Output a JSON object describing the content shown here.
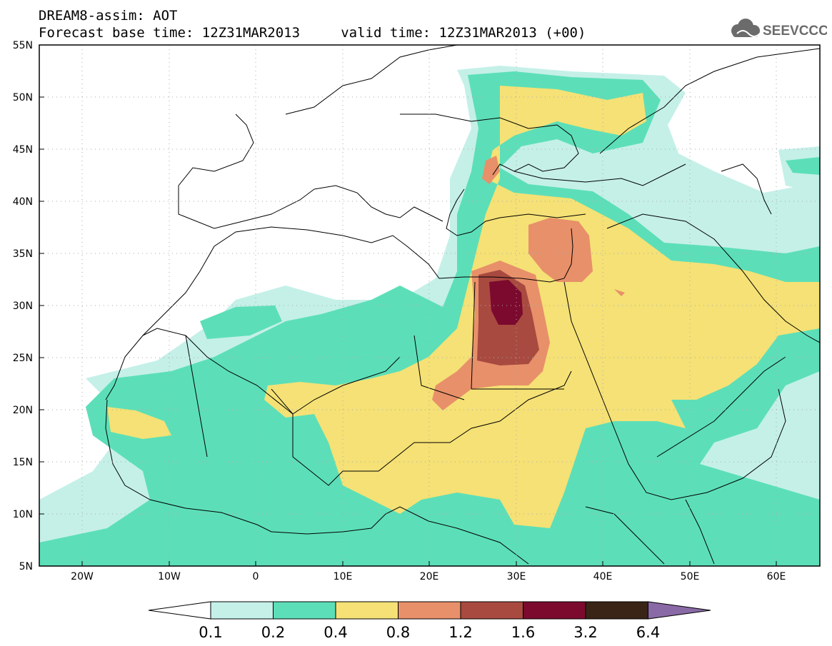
{
  "header": {
    "line1": "DREAM8-assim: AOT",
    "line2": "Forecast base time: 12Z31MAR2013     valid time: 12Z31MAR2013 (+00)",
    "logo_text": "SEEVCCC"
  },
  "map": {
    "lon_range": [
      -25,
      65
    ],
    "lat_range": [
      5,
      55
    ],
    "lon_ticks": [
      "20W",
      "10W",
      "0",
      "10E",
      "20E",
      "30E",
      "40E",
      "50E",
      "60E"
    ],
    "lat_ticks": [
      "55N",
      "50N",
      "45N",
      "40N",
      "35N",
      "30N",
      "25N",
      "20N",
      "15N",
      "10N",
      "5N"
    ],
    "grid": "dotted"
  },
  "colorbar": {
    "labels": [
      "0.1",
      "0.2",
      "0.4",
      "0.8",
      "1.2",
      "1.6",
      "3.2",
      "6.4"
    ],
    "colors": [
      "#c4f0e8",
      "#5cdfb8",
      "#f5e175",
      "#e8906a",
      "#a84a40",
      "#7b0a2e",
      "#3a2416",
      "#8a6aa6"
    ],
    "under_color": "#ffffff"
  }
}
